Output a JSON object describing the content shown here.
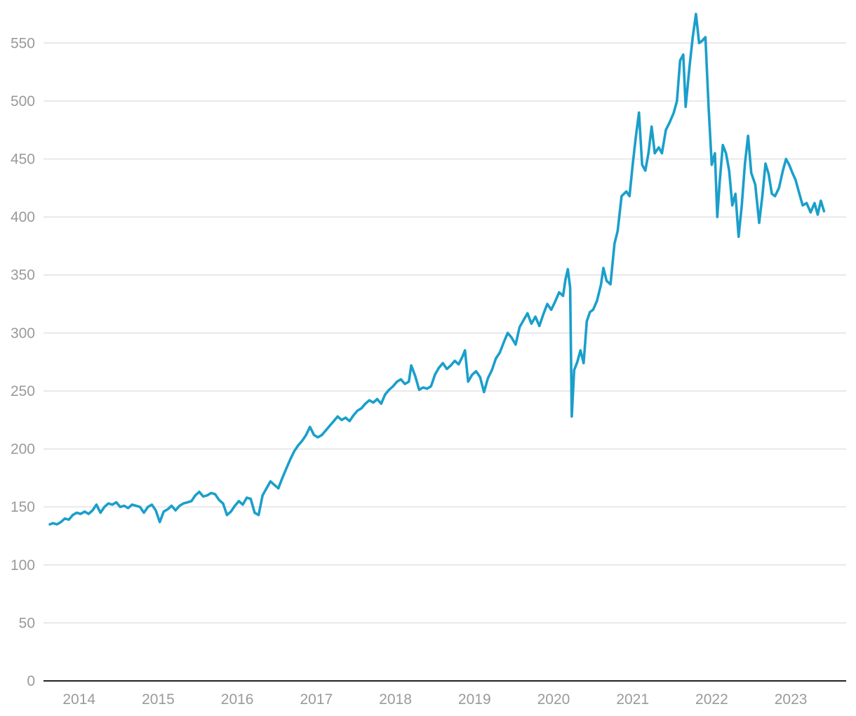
{
  "chart_data": {
    "type": "line",
    "title": "",
    "xlabel": "",
    "ylabel": "",
    "xlim": [
      2013.55,
      2023.7
    ],
    "ylim": [
      0,
      575
    ],
    "grid": true,
    "legend": "none",
    "x_ticks": [
      {
        "value": 2014.0,
        "label": "2014"
      },
      {
        "value": 2015.0,
        "label": "2015"
      },
      {
        "value": 2016.0,
        "label": "2016"
      },
      {
        "value": 2017.0,
        "label": "2017"
      },
      {
        "value": 2018.0,
        "label": "2018"
      },
      {
        "value": 2019.0,
        "label": "2019"
      },
      {
        "value": 2020.0,
        "label": "2020"
      },
      {
        "value": 2021.0,
        "label": "2021"
      },
      {
        "value": 2022.0,
        "label": "2022"
      },
      {
        "value": 2023.0,
        "label": "2023"
      }
    ],
    "y_ticks": [
      {
        "value": 0,
        "label": "0"
      },
      {
        "value": 50,
        "label": "50"
      },
      {
        "value": 100,
        "label": "100"
      },
      {
        "value": 150,
        "label": "150"
      },
      {
        "value": 200,
        "label": "200"
      },
      {
        "value": 250,
        "label": "250"
      },
      {
        "value": 300,
        "label": "300"
      },
      {
        "value": 350,
        "label": "350"
      },
      {
        "value": 400,
        "label": "400"
      },
      {
        "value": 450,
        "label": "450"
      },
      {
        "value": 500,
        "label": "500"
      },
      {
        "value": 550,
        "label": "550"
      }
    ],
    "series": [
      {
        "color": "#1a9fcb",
        "points": [
          [
            2013.63,
            135
          ],
          [
            2013.67,
            136
          ],
          [
            2013.72,
            135
          ],
          [
            2013.77,
            137
          ],
          [
            2013.82,
            140
          ],
          [
            2013.87,
            139
          ],
          [
            2013.92,
            143
          ],
          [
            2013.97,
            145
          ],
          [
            2014.02,
            144
          ],
          [
            2014.07,
            146
          ],
          [
            2014.12,
            144
          ],
          [
            2014.17,
            147
          ],
          [
            2014.22,
            152
          ],
          [
            2014.27,
            145
          ],
          [
            2014.32,
            150
          ],
          [
            2014.37,
            153
          ],
          [
            2014.42,
            152
          ],
          [
            2014.47,
            154
          ],
          [
            2014.52,
            150
          ],
          [
            2014.57,
            151
          ],
          [
            2014.62,
            149
          ],
          [
            2014.67,
            152
          ],
          [
            2014.72,
            151
          ],
          [
            2014.77,
            150
          ],
          [
            2014.82,
            145
          ],
          [
            2014.87,
            150
          ],
          [
            2014.92,
            152
          ],
          [
            2014.97,
            147
          ],
          [
            2015.02,
            137
          ],
          [
            2015.07,
            146
          ],
          [
            2015.12,
            148
          ],
          [
            2015.17,
            151
          ],
          [
            2015.22,
            147
          ],
          [
            2015.27,
            151
          ],
          [
            2015.32,
            153
          ],
          [
            2015.37,
            154
          ],
          [
            2015.42,
            155
          ],
          [
            2015.47,
            160
          ],
          [
            2015.52,
            163
          ],
          [
            2015.57,
            159
          ],
          [
            2015.62,
            160
          ],
          [
            2015.67,
            162
          ],
          [
            2015.72,
            161
          ],
          [
            2015.77,
            156
          ],
          [
            2015.82,
            153
          ],
          [
            2015.87,
            143
          ],
          [
            2015.92,
            146
          ],
          [
            2015.97,
            151
          ],
          [
            2016.02,
            155
          ],
          [
            2016.07,
            152
          ],
          [
            2016.12,
            158
          ],
          [
            2016.17,
            157
          ],
          [
            2016.22,
            145
          ],
          [
            2016.27,
            143
          ],
          [
            2016.32,
            160
          ],
          [
            2016.37,
            166
          ],
          [
            2016.42,
            172
          ],
          [
            2016.47,
            169
          ],
          [
            2016.52,
            166
          ],
          [
            2016.57,
            175
          ],
          [
            2016.62,
            183
          ],
          [
            2016.67,
            191
          ],
          [
            2016.72,
            198
          ],
          [
            2016.77,
            203
          ],
          [
            2016.82,
            207
          ],
          [
            2016.87,
            212
          ],
          [
            2016.92,
            219
          ],
          [
            2016.97,
            212
          ],
          [
            2017.02,
            210
          ],
          [
            2017.07,
            212
          ],
          [
            2017.12,
            216
          ],
          [
            2017.17,
            220
          ],
          [
            2017.22,
            224
          ],
          [
            2017.27,
            228
          ],
          [
            2017.32,
            225
          ],
          [
            2017.37,
            227
          ],
          [
            2017.42,
            224
          ],
          [
            2017.47,
            229
          ],
          [
            2017.52,
            233
          ],
          [
            2017.57,
            235
          ],
          [
            2017.62,
            239
          ],
          [
            2017.67,
            242
          ],
          [
            2017.72,
            240
          ],
          [
            2017.77,
            243
          ],
          [
            2017.82,
            239
          ],
          [
            2017.87,
            247
          ],
          [
            2017.92,
            251
          ],
          [
            2017.97,
            254
          ],
          [
            2018.02,
            258
          ],
          [
            2018.07,
            260
          ],
          [
            2018.12,
            256
          ],
          [
            2018.17,
            258
          ],
          [
            2018.2,
            272
          ],
          [
            2018.25,
            263
          ],
          [
            2018.3,
            251
          ],
          [
            2018.35,
            253
          ],
          [
            2018.4,
            252
          ],
          [
            2018.45,
            254
          ],
          [
            2018.5,
            264
          ],
          [
            2018.55,
            270
          ],
          [
            2018.6,
            274
          ],
          [
            2018.65,
            269
          ],
          [
            2018.7,
            272
          ],
          [
            2018.75,
            276
          ],
          [
            2018.8,
            273
          ],
          [
            2018.85,
            280
          ],
          [
            2018.88,
            285
          ],
          [
            2018.92,
            258
          ],
          [
            2018.97,
            264
          ],
          [
            2019.02,
            267
          ],
          [
            2019.07,
            262
          ],
          [
            2019.12,
            249
          ],
          [
            2019.17,
            261
          ],
          [
            2019.22,
            268
          ],
          [
            2019.27,
            278
          ],
          [
            2019.32,
            283
          ],
          [
            2019.37,
            292
          ],
          [
            2019.42,
            300
          ],
          [
            2019.47,
            296
          ],
          [
            2019.52,
            290
          ],
          [
            2019.57,
            305
          ],
          [
            2019.62,
            311
          ],
          [
            2019.67,
            317
          ],
          [
            2019.72,
            308
          ],
          [
            2019.77,
            314
          ],
          [
            2019.82,
            306
          ],
          [
            2019.87,
            316
          ],
          [
            2019.92,
            325
          ],
          [
            2019.97,
            320
          ],
          [
            2020.02,
            327
          ],
          [
            2020.07,
            335
          ],
          [
            2020.12,
            332
          ],
          [
            2020.15,
            346
          ],
          [
            2020.18,
            355
          ],
          [
            2020.21,
            339
          ],
          [
            2020.23,
            228
          ],
          [
            2020.26,
            268
          ],
          [
            2020.3,
            275
          ],
          [
            2020.34,
            285
          ],
          [
            2020.38,
            274
          ],
          [
            2020.42,
            310
          ],
          [
            2020.46,
            318
          ],
          [
            2020.5,
            320
          ],
          [
            2020.55,
            328
          ],
          [
            2020.6,
            342
          ],
          [
            2020.63,
            356
          ],
          [
            2020.67,
            345
          ],
          [
            2020.72,
            342
          ],
          [
            2020.77,
            377
          ],
          [
            2020.81,
            388
          ],
          [
            2020.86,
            418
          ],
          [
            2020.92,
            422
          ],
          [
            2020.96,
            418
          ],
          [
            2021.0,
            445
          ],
          [
            2021.04,
            469
          ],
          [
            2021.08,
            490
          ],
          [
            2021.12,
            445
          ],
          [
            2021.16,
            440
          ],
          [
            2021.2,
            455
          ],
          [
            2021.24,
            478
          ],
          [
            2021.28,
            455
          ],
          [
            2021.33,
            460
          ],
          [
            2021.37,
            455
          ],
          [
            2021.42,
            475
          ],
          [
            2021.47,
            482
          ],
          [
            2021.52,
            490
          ],
          [
            2021.56,
            500
          ],
          [
            2021.6,
            535
          ],
          [
            2021.64,
            540
          ],
          [
            2021.67,
            495
          ],
          [
            2021.72,
            530
          ],
          [
            2021.76,
            555
          ],
          [
            2021.8,
            575
          ],
          [
            2021.84,
            550
          ],
          [
            2021.88,
            552
          ],
          [
            2021.92,
            555
          ],
          [
            2021.96,
            495
          ],
          [
            2022.0,
            445
          ],
          [
            2022.04,
            455
          ],
          [
            2022.07,
            400
          ],
          [
            2022.1,
            430
          ],
          [
            2022.14,
            462
          ],
          [
            2022.18,
            455
          ],
          [
            2022.22,
            440
          ],
          [
            2022.26,
            410
          ],
          [
            2022.3,
            420
          ],
          [
            2022.34,
            383
          ],
          [
            2022.38,
            410
          ],
          [
            2022.42,
            446
          ],
          [
            2022.46,
            470
          ],
          [
            2022.5,
            438
          ],
          [
            2022.55,
            428
          ],
          [
            2022.6,
            395
          ],
          [
            2022.64,
            418
          ],
          [
            2022.68,
            446
          ],
          [
            2022.72,
            437
          ],
          [
            2022.76,
            420
          ],
          [
            2022.8,
            418
          ],
          [
            2022.85,
            425
          ],
          [
            2022.9,
            440
          ],
          [
            2022.94,
            450
          ],
          [
            2022.98,
            445
          ],
          [
            2023.02,
            438
          ],
          [
            2023.06,
            432
          ],
          [
            2023.1,
            422
          ],
          [
            2023.15,
            410
          ],
          [
            2023.2,
            412
          ],
          [
            2023.25,
            404
          ],
          [
            2023.3,
            412
          ],
          [
            2023.34,
            402
          ],
          [
            2023.38,
            414
          ],
          [
            2023.42,
            405
          ]
        ]
      }
    ]
  }
}
